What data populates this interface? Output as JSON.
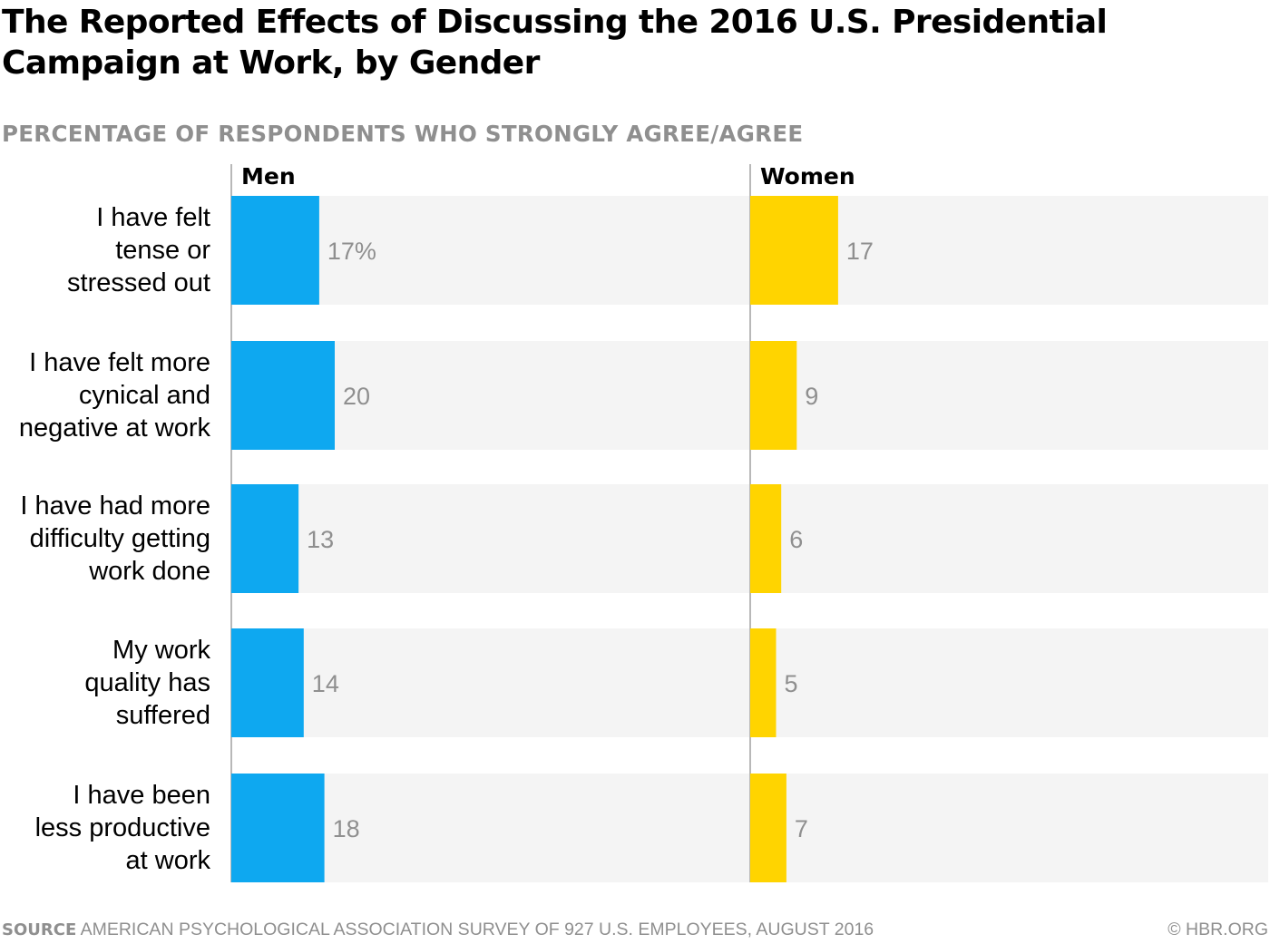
{
  "title": "The Reported Effects of Discussing the 2016 U.S. Presidential Campaign at Work, by Gender",
  "subtitle": "PERCENTAGE OF RESPONDENTS WHO STRONGLY AGREE/AGREE",
  "footer": {
    "source_label": "SOURCE",
    "source_text": "AMERICAN PSYCHOLOGICAL ASSOCIATION SURVEY OF 927 U.S. EMPLOYEES, AUGUST 2016",
    "credit": "© HBR.ORG"
  },
  "colors": {
    "men": "#0ea8f0",
    "women": "#ffd400",
    "track": "#f4f4f4",
    "value_text": "#8f8f8f",
    "axis": "#9a9a9a"
  },
  "chart_data": {
    "type": "bar",
    "orientation": "horizontal",
    "title": "The Reported Effects of Discussing the 2016 U.S. Presidential Campaign at Work, by Gender",
    "subtitle": "PERCENTAGE OF RESPONDENTS WHO STRONGLY AGREE/AGREE",
    "unit": "%",
    "xlim": [
      0,
      100
    ],
    "categories": [
      [
        "I have felt",
        "tense or",
        "stressed out"
      ],
      [
        "I have felt more",
        "cynical and",
        "negative at work"
      ],
      [
        "I have had more",
        "difficulty getting",
        "work done"
      ],
      [
        "My work",
        "quality has",
        "suffered"
      ],
      [
        "I have been",
        "less productive",
        "at work"
      ]
    ],
    "series": [
      {
        "name": "Men",
        "values": [
          17,
          20,
          13,
          14,
          18
        ],
        "labels": [
          "17%",
          "20",
          "13",
          "14",
          "18"
        ]
      },
      {
        "name": "Women",
        "values": [
          17,
          9,
          6,
          5,
          7
        ],
        "labels": [
          "17",
          "9",
          "6",
          "5",
          "7"
        ]
      }
    ]
  }
}
